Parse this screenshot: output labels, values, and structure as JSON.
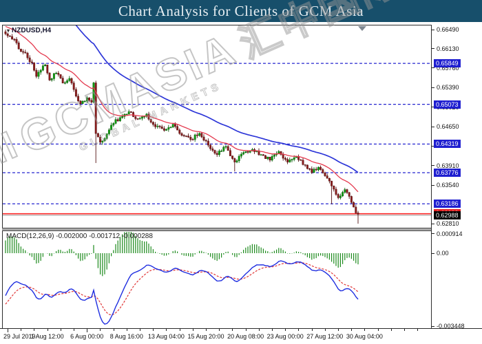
{
  "banner": {
    "title": "Chart Analysis for Clients of GCM Asia",
    "bg": "#174f6b",
    "fg": "#e7eef2"
  },
  "chart": {
    "symbol_label": "NZDUSD,H4",
    "watermark": {
      "logo": "ılıl",
      "text": "GCMASIA",
      "cjk": "汇中国际",
      "subtext": "GLOBAL MARKETS"
    },
    "price_axis": {
      "ticks": [
        "0.66490",
        "0.66130",
        "0.65760",
        "0.65390",
        "0.65020",
        "0.64650",
        "0.64280",
        "0.63910",
        "0.63540",
        "0.62810"
      ],
      "levels_blue": [
        "0.65849",
        "0.65073",
        "0.64319",
        "0.63776",
        "0.63186"
      ],
      "level_red": "0.62998",
      "bid": "0.62988"
    },
    "time_axis": [
      "29 Jul 2019",
      "1 Aug 12:00",
      "6 Aug 00:00",
      "8 Aug 16:00",
      "13 Aug 04:00",
      "15 Aug 20:00",
      "20 Aug 08:00",
      "23 Aug 00:00",
      "27 Aug 12:00",
      "30 Aug 04:00"
    ],
    "colors": {
      "bull": "#0fa00f",
      "bull_dark": "#0b5c0b",
      "bear": "#8e1d1d",
      "bear_dark": "#521010",
      "ma_fast": "#e4394e",
      "ma_slow": "#2d36d8",
      "level_blue": "#2424cf",
      "level_box_blue": "#1f1fd0",
      "red_line": "#ff2626",
      "red_box": "#e02020",
      "bid_line": "#9a9a9a",
      "bid_box": "#000000",
      "hist_green": "#1d8a1d",
      "macd_line": "#1f2ee0",
      "signal_line": "#e03535"
    }
  },
  "macd": {
    "label": "MACD(12,26,9) -0.002000 -0.001712 -0.000288",
    "axis_ticks": [
      "0.000914",
      "0.00",
      "-0.003448"
    ]
  },
  "chart_data": {
    "type": "candlestick",
    "symbol": "NZDUSD",
    "timeframe": "H4",
    "title": "Chart Analysis for Clients of GCM Asia",
    "price_axis_range_visible": [
      0.6281,
      0.6649
    ],
    "price_ticks": [
      0.6649,
      0.6613,
      0.6576,
      0.6539,
      0.6502,
      0.6465,
      0.6428,
      0.6391,
      0.6354,
      0.6281
    ],
    "blue_dashed_levels": [
      0.65849,
      0.65073,
      0.64319,
      0.63776,
      0.63186
    ],
    "red_line_level": 0.62998,
    "current_bid": 0.62988,
    "time_labels": [
      "29 Jul 2019",
      "1 Aug 12:00",
      "6 Aug 00:00",
      "8 Aug 16:00",
      "13 Aug 04:00",
      "15 Aug 20:00",
      "20 Aug 08:00",
      "23 Aug 00:00",
      "27 Aug 12:00",
      "30 Aug 04:00"
    ],
    "bars_visible": 161,
    "trend": "downtrend from 0.6649 to 0.6281 between 29 Jul 2019 and 30 Aug 2019",
    "close_path_anchors": [
      [
        0,
        0.6641
      ],
      [
        2,
        0.6636
      ],
      [
        4,
        0.663
      ],
      [
        6,
        0.6612
      ],
      [
        8,
        0.6606
      ],
      [
        10,
        0.6596
      ],
      [
        12,
        0.6586
      ],
      [
        14,
        0.656
      ],
      [
        16,
        0.6572
      ],
      [
        18,
        0.6582
      ],
      [
        20,
        0.6553
      ],
      [
        23,
        0.6567
      ],
      [
        26,
        0.6548
      ],
      [
        29,
        0.6556
      ],
      [
        32,
        0.6523
      ],
      [
        34,
        0.6508
      ],
      [
        37,
        0.652
      ],
      [
        39,
        0.6512
      ],
      [
        40,
        0.6548
      ],
      [
        41,
        0.6452
      ],
      [
        43,
        0.6436
      ],
      [
        45,
        0.6442
      ],
      [
        48,
        0.6468
      ],
      [
        52,
        0.6482
      ],
      [
        56,
        0.6493
      ],
      [
        60,
        0.648
      ],
      [
        64,
        0.6488
      ],
      [
        68,
        0.6465
      ],
      [
        72,
        0.6458
      ],
      [
        76,
        0.647
      ],
      [
        80,
        0.6448
      ],
      [
        84,
        0.6441
      ],
      [
        88,
        0.6452
      ],
      [
        92,
        0.643
      ],
      [
        96,
        0.6412
      ],
      [
        100,
        0.6428
      ],
      [
        104,
        0.6398
      ],
      [
        108,
        0.6416
      ],
      [
        112,
        0.6422
      ],
      [
        116,
        0.6412
      ],
      [
        120,
        0.6402
      ],
      [
        124,
        0.6418
      ],
      [
        128,
        0.6398
      ],
      [
        132,
        0.6408
      ],
      [
        136,
        0.6392
      ],
      [
        139,
        0.6378
      ],
      [
        142,
        0.6388
      ],
      [
        145,
        0.6372
      ],
      [
        148,
        0.6352
      ],
      [
        151,
        0.633
      ],
      [
        154,
        0.6346
      ],
      [
        156,
        0.6332
      ],
      [
        158,
        0.6312
      ],
      [
        159,
        0.6302
      ],
      [
        160,
        0.62988
      ]
    ],
    "wick_lows": [
      [
        41,
        0.6396
      ],
      [
        104,
        0.638
      ],
      [
        148,
        0.6318
      ],
      [
        160,
        0.6281
      ]
    ],
    "wick_highs": [
      [
        0,
        0.6649
      ],
      [
        41,
        0.6552
      ]
    ],
    "moving_averages": [
      {
        "name": "fast-red",
        "period": 20,
        "color": "#e4394e"
      },
      {
        "name": "slow-blue",
        "period": 55,
        "color": "#2d36d8"
      }
    ],
    "indicator": {
      "name": "MACD",
      "params": [
        12,
        26,
        9
      ],
      "current_values": [
        -0.002,
        -0.001712,
        -0.000288
      ],
      "axis_ticks": [
        0.000914,
        0.0,
        -0.003448
      ]
    }
  }
}
